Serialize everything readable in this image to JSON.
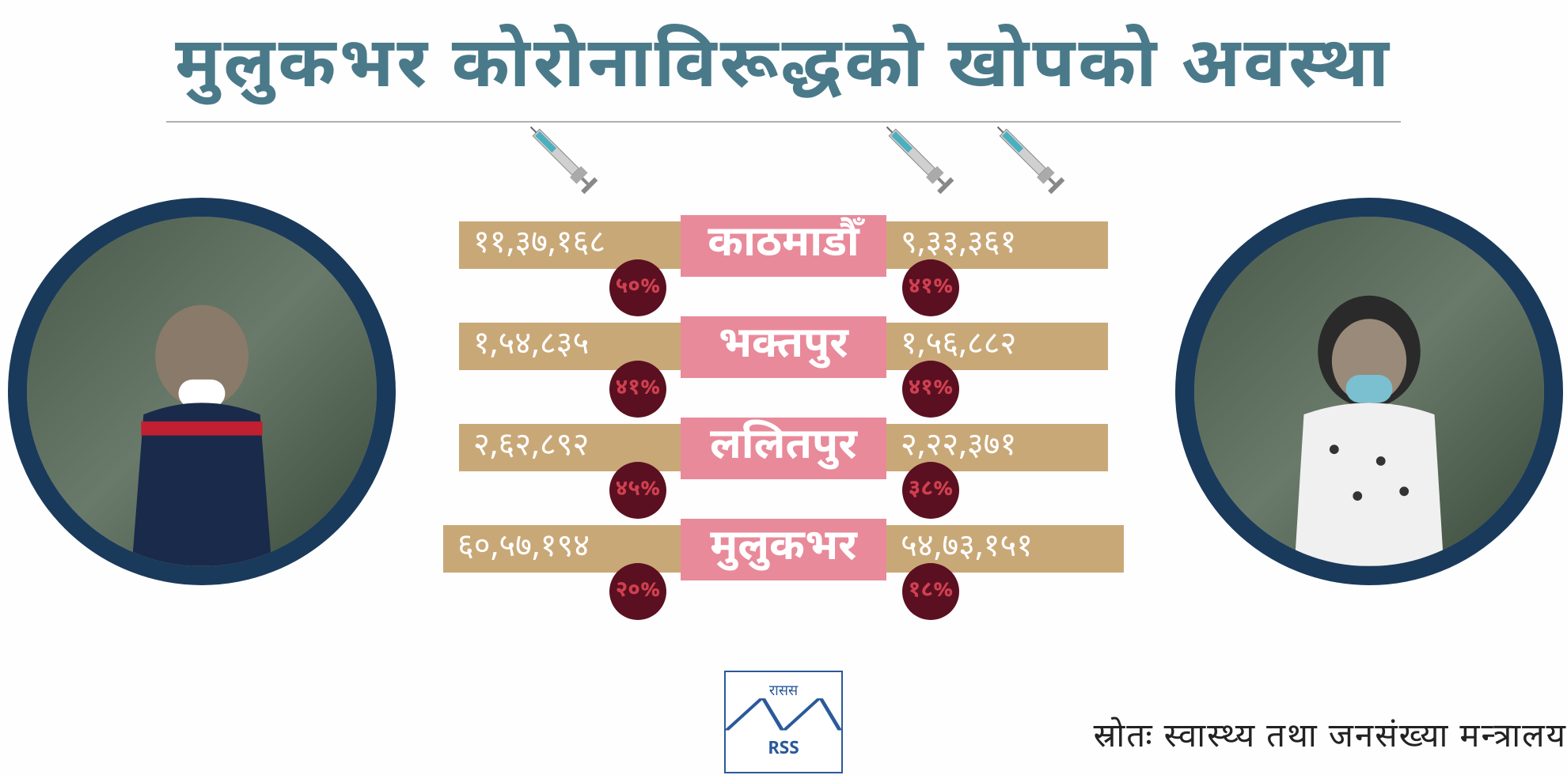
{
  "colors": {
    "title": "#4a7a8a",
    "circle_border": "#1a3a5c",
    "bar_bg": "#c9a878",
    "bar_text": "#ffffff",
    "district_bg": "#e88a9a",
    "district_text": "#ffffff",
    "pct_bg": "#5a1020",
    "pct_text": "#d04050",
    "syringe_body": "#d0d0d0",
    "syringe_fluid": "#4ab0c0",
    "logo_color": "#2a5a9a"
  },
  "title": "मुलुकभर कोरोनाविरूद्धको खोपको अवस्था",
  "source": "स्रोतः स्वास्थ्य तथा जनसंख्या मन्त्रालय",
  "logo": {
    "top": "रासस",
    "bottom": "RSS"
  },
  "syringe_icons": {
    "dose1_count": 1,
    "dose2_count": 2
  },
  "rows": [
    {
      "district": "काठमाडौँ",
      "dose1_value": "११,३७,१६८",
      "dose1_pct": "५०%",
      "dose2_value": "९,३३,३६१",
      "dose2_pct": "४१%",
      "bar_left_width": 280,
      "bar_right_width": 280
    },
    {
      "district": "भक्तपुर",
      "dose1_value": "१,५४,८३५",
      "dose1_pct": "४१%",
      "dose2_value": "१,५६,८८२",
      "dose2_pct": "४१%",
      "bar_left_width": 280,
      "bar_right_width": 280
    },
    {
      "district": "ललितपुर",
      "dose1_value": "२,६२,८९२",
      "dose1_pct": "४५%",
      "dose2_value": "२,२२,३७१",
      "dose2_pct": "३८%",
      "bar_left_width": 280,
      "bar_right_width": 280
    },
    {
      "district": "मुलुकभर",
      "dose1_value": "६०,५७,१९४",
      "dose1_pct": "२०%",
      "dose2_value": "५४,७३,१५१",
      "dose2_pct": "१८%",
      "bar_left_width": 300,
      "bar_right_width": 300
    }
  ]
}
